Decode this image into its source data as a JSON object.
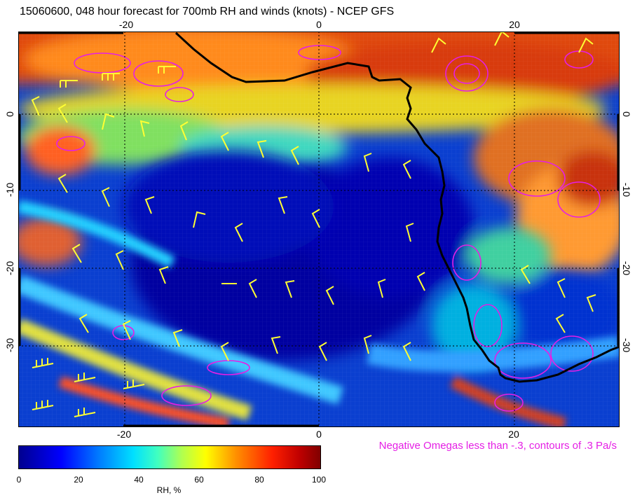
{
  "title": "15060600, 048 hour forecast for 700mb RH and winds (knots) - NCEP GFS",
  "map": {
    "lon_ticks": [
      "-20",
      "0",
      "20"
    ],
    "lat_ticks": [
      "0",
      "-10",
      "-20",
      "-30"
    ],
    "colors": {
      "ocean_dry": "#0000a8",
      "coastline": "#000000",
      "wind_barb": "#ffff33",
      "omega_contour": "#e51fe5"
    }
  },
  "omega_note": "Negative Omegas less than -.3, contours of .3 Pa/s",
  "colorbar": {
    "ticks": [
      "0",
      "20",
      "40",
      "60",
      "80",
      "100"
    ],
    "label": "RH, %"
  }
}
